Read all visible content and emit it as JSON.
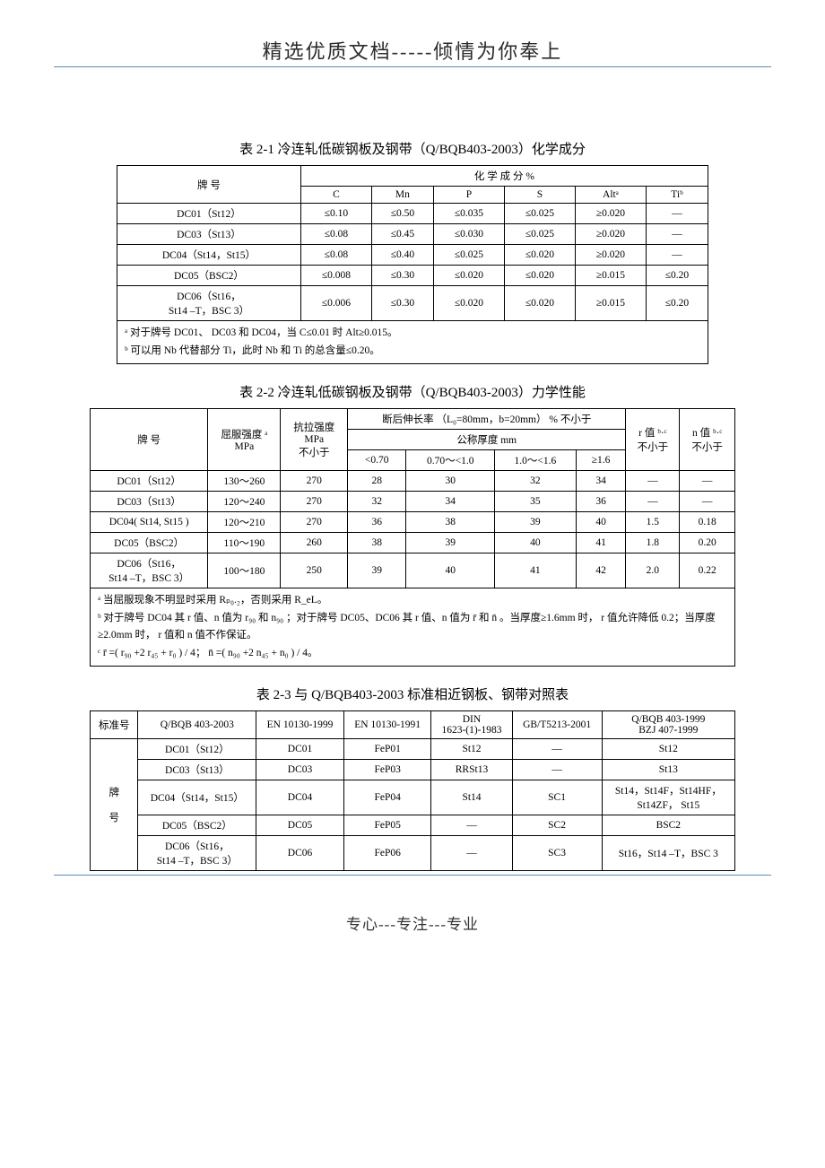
{
  "header": {
    "title": "精选优质文档-----倾情为你奉上"
  },
  "footer": {
    "text": "专心---专注---专业"
  },
  "table1": {
    "caption": "表 2-1 冷连轧低碳钢板及钢带（Q/BQB403-2003）化学成分",
    "col_grade": "牌  号",
    "col_chem": "化  学  成  分   %",
    "cols": [
      "C",
      "Mn",
      "P",
      "S",
      "Altᵃ",
      "Tiᵇ"
    ],
    "rows": [
      [
        "DC01（St12）",
        "≤0.10",
        "≤0.50",
        "≤0.035",
        "≤0.025",
        "≥0.020",
        "—"
      ],
      [
        "DC03（St13）",
        "≤0.08",
        "≤0.45",
        "≤0.030",
        "≤0.025",
        "≥0.020",
        "—"
      ],
      [
        "DC04（St14，St15）",
        "≤0.08",
        "≤0.40",
        "≤0.025",
        "≤0.020",
        "≥0.020",
        "—"
      ],
      [
        "DC05（BSC2）",
        "≤0.008",
        "≤0.30",
        "≤0.020",
        "≤0.020",
        "≥0.015",
        "≤0.20"
      ],
      [
        "DC06（St16，\nSt14 –T，BSC 3）",
        "≤0.006",
        "≤0.30",
        "≤0.020",
        "≤0.020",
        "≥0.015",
        "≤0.20"
      ]
    ],
    "note_a": "ᵃ 对于牌号 DC01、 DC03 和 DC04，当 C≤0.01 时 Alt≥0.015。",
    "note_b": "ᵇ 可以用 Nb 代替部分 Ti，此时 Nb 和 Ti 的总含量≤0.20。"
  },
  "table2": {
    "caption": "表 2-2  冷连轧低碳钢板及钢带（Q/BQB403-2003）力学性能",
    "hdr_grade": "牌   号",
    "hdr_yield": "屈服强度 ᵃ\nMPa",
    "hdr_tensile": "抗拉强度\nMPa\n不小于",
    "hdr_elong": "断后伸长率 （L₀=80mm，b=20mm）  %  不小于",
    "hdr_thick": "公称厚度    mm",
    "thick_cols": [
      "<0.70",
      "0.70～<1.0",
      "1.0～<1.6",
      "≥1.6"
    ],
    "hdr_r": "r 值 ᵇ·ᶜ\n不小于",
    "hdr_n": "n 值 ᵇ·ᶜ\n不小于",
    "rows": [
      [
        "DC01（St12）",
        "130～260",
        "270",
        "28",
        "30",
        "32",
        "34",
        "—",
        "—"
      ],
      [
        "DC03（St13）",
        "120～240",
        "270",
        "32",
        "34",
        "35",
        "36",
        "—",
        "—"
      ],
      [
        "DC04( St14, St15 )",
        "120～210",
        "270",
        "36",
        "38",
        "39",
        "40",
        "1.5",
        "0.18"
      ],
      [
        "DC05（BSC2）",
        "110～190",
        "260",
        "38",
        "39",
        "40",
        "41",
        "1.8",
        "0.20"
      ],
      [
        "DC06（St16，\nSt14 –T，BSC 3）",
        "100～180",
        "250",
        "39",
        "40",
        "41",
        "42",
        "2.0",
        "0.22"
      ]
    ],
    "note_a": "ᵃ 当屈服现象不明显时采用 Rₚ₀.₂，否则采用 R_eL。",
    "note_b": "ᵇ 对于牌号 DC04 其 r 值、n 值为 r₉₀ 和 n₉₀ ；对于牌号 DC05、DC06 其 r 值、n 值为 r̄ 和 n̄ 。当厚度≥1.6mm 时， r 值允许降低 0.2；当厚度≥2.0mm 时， r 值和 n 值不作保证。",
    "note_c": "ᶜ  r̄ =( r₉₀ +2 r₄₅ + r₀ ) / 4；  n̄ =( n₉₀ +2 n₄₅ + n₀ ) / 4。"
  },
  "table3": {
    "caption": "表 2-3  与 Q/BQB403-2003 标准相近钢板、钢带对照表",
    "hdr_std": "标准号",
    "hdr_grade": "牌\n\n号",
    "cols": [
      "Q/BQB 403-2003",
      "EN 10130-1999",
      "EN 10130-1991",
      "DIN\n1623-(1)-1983",
      "GB/T5213-2001",
      "Q/BQB 403-1999\nBZJ 407-1999"
    ],
    "rows": [
      [
        "DC01（St12）",
        "DC01",
        "FeP01",
        "St12",
        "—",
        "St12"
      ],
      [
        "DC03（St13）",
        "DC03",
        "FeP03",
        "RRSt13",
        "—",
        "St13"
      ],
      [
        "DC04（St14，St15）",
        "DC04",
        "FeP04",
        "St14",
        "SC1",
        "St14，St14F，St14HF，\nSt14ZF，   St15"
      ],
      [
        "DC05（BSC2）",
        "DC05",
        "FeP05",
        "—",
        "SC2",
        "BSC2"
      ],
      [
        "DC06（St16，\nSt14 –T，BSC 3）",
        "DC06",
        "FeP06",
        "—",
        "SC3",
        "St16，St14 –T，BSC 3"
      ]
    ]
  },
  "style": {
    "background_color": "#ffffff",
    "text_color": "#000000",
    "rule_color": "#5b8db8",
    "body_fontsize": 12,
    "caption_fontsize": 15,
    "header_fontsize": 22
  }
}
